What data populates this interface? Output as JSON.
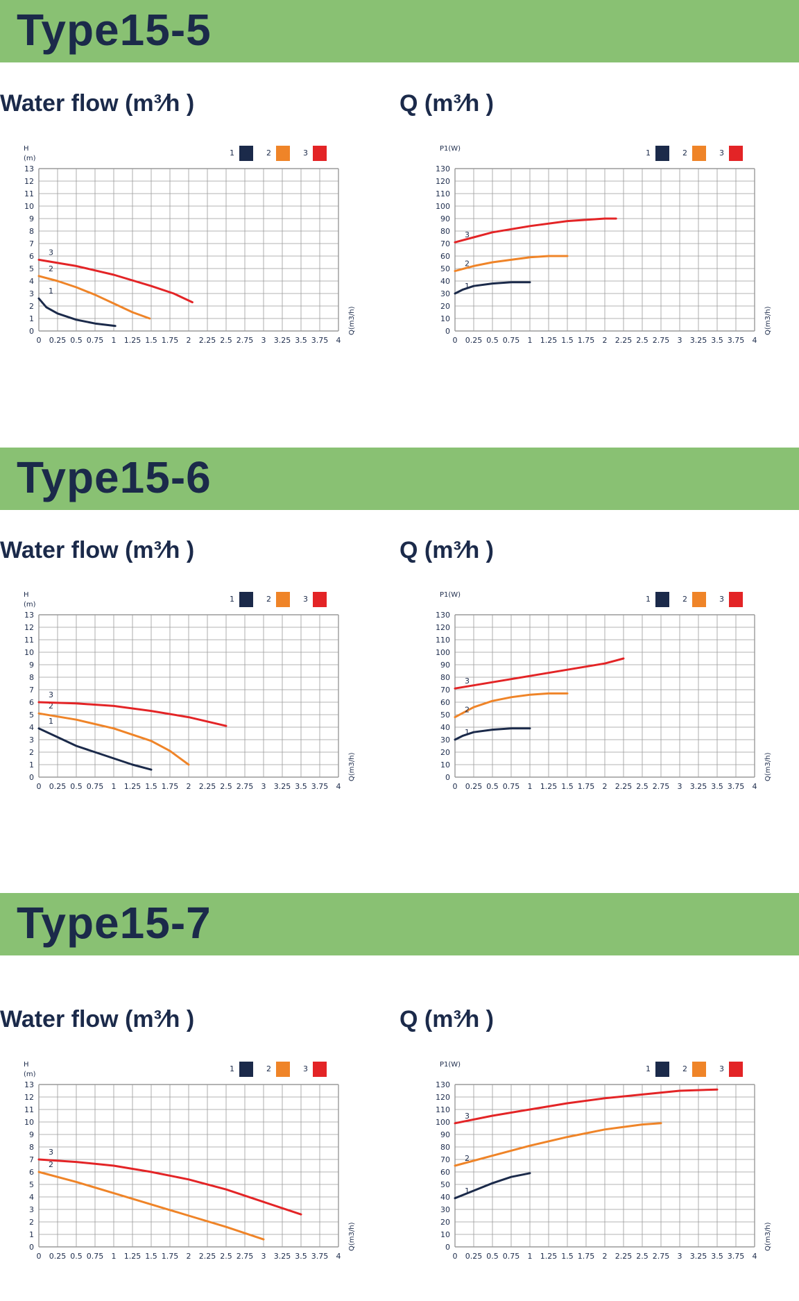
{
  "colors": {
    "banner": "#89c173",
    "series1": "#1b2a4a",
    "series2": "#ef8428",
    "series3": "#e32426",
    "grid": "#9a9a9a"
  },
  "sections": [
    {
      "title": "Type15-5",
      "left_label": "Water flow (m³⁄h )",
      "right_label": "Q (m³⁄h )"
    },
    {
      "title": "Type15-6",
      "left_label": "Water flow (m³⁄h )",
      "right_label": "Q (m³⁄h )"
    },
    {
      "title": "Type15-7",
      "left_label": "Water flow (m³⁄h )",
      "right_label": "Q (m³⁄h )"
    }
  ],
  "chart_data": [
    {
      "type": "line",
      "panel": "Type15-5 head",
      "ylabel_line1": "H",
      "ylabel_line2": "(m)",
      "xlabel": "Q(m3/h)",
      "xlim": [
        0,
        4
      ],
      "ylim": [
        0,
        13
      ],
      "ystep": 1,
      "xstep": 0.25,
      "grid": true,
      "legend_placement": "top-right",
      "x_ticks": [
        "0",
        "0.25",
        "0.5",
        "0.75",
        "1",
        "1.25",
        "1.5",
        "1.75",
        "2",
        "2.25",
        "2.5",
        "2.75",
        "3",
        "3.25",
        "3.5",
        "3.75",
        "4"
      ],
      "series": [
        {
          "name": "1",
          "points": [
            [
              0,
              2.6
            ],
            [
              0.1,
              1.9
            ],
            [
              0.25,
              1.4
            ],
            [
              0.5,
              0.9
            ],
            [
              0.75,
              0.6
            ],
            [
              1.02,
              0.4
            ]
          ]
        },
        {
          "name": "2",
          "points": [
            [
              0,
              4.4
            ],
            [
              0.25,
              4.0
            ],
            [
              0.5,
              3.5
            ],
            [
              0.75,
              2.9
            ],
            [
              1.0,
              2.2
            ],
            [
              1.25,
              1.5
            ],
            [
              1.48,
              1.0
            ]
          ]
        },
        {
          "name": "3",
          "points": [
            [
              0,
              5.7
            ],
            [
              0.5,
              5.2
            ],
            [
              1.0,
              4.5
            ],
            [
              1.5,
              3.6
            ],
            [
              1.8,
              3.0
            ],
            [
              2.05,
              2.3
            ]
          ]
        }
      ]
    },
    {
      "type": "line",
      "panel": "Type15-5 power",
      "ylabel_line1": "P1(W)",
      "ylabel_line2": "",
      "xlabel": "Q(m3/h)",
      "xlim": [
        0,
        4
      ],
      "ylim": [
        0,
        130
      ],
      "ystep": 10,
      "xstep": 0.25,
      "grid": true,
      "legend_placement": "top-right",
      "x_ticks": [
        "0",
        "0.25",
        "0.5",
        "0.75",
        "1",
        "1.25",
        "1.5",
        "1.75",
        "2",
        "2.25",
        "2.5",
        "2.75",
        "3",
        "3.25",
        "3.5",
        "3.75",
        "4"
      ],
      "series": [
        {
          "name": "1",
          "points": [
            [
              0,
              30
            ],
            [
              0.1,
              33
            ],
            [
              0.25,
              36
            ],
            [
              0.5,
              38
            ],
            [
              0.75,
              39
            ],
            [
              1.0,
              39
            ]
          ]
        },
        {
          "name": "2",
          "points": [
            [
              0,
              48
            ],
            [
              0.25,
              52
            ],
            [
              0.5,
              55
            ],
            [
              0.75,
              57
            ],
            [
              1.0,
              59
            ],
            [
              1.25,
              60
            ],
            [
              1.5,
              60
            ]
          ]
        },
        {
          "name": "3",
          "points": [
            [
              0,
              71
            ],
            [
              0.25,
              75
            ],
            [
              0.5,
              79
            ],
            [
              1.0,
              84
            ],
            [
              1.5,
              88
            ],
            [
              2.0,
              90
            ],
            [
              2.15,
              90
            ]
          ]
        }
      ]
    },
    {
      "type": "line",
      "panel": "Type15-6 head",
      "ylabel_line1": "H",
      "ylabel_line2": "(m)",
      "xlabel": "Q(m3/h)",
      "xlim": [
        0,
        4
      ],
      "ylim": [
        0,
        13
      ],
      "ystep": 1,
      "xstep": 0.25,
      "grid": true,
      "legend_placement": "top-right",
      "x_ticks": [
        "0",
        "0.25",
        "0.5",
        "0.75",
        "1",
        "1.25",
        "1.5",
        "1.75",
        "2",
        "2.25",
        "2.5",
        "2.75",
        "3",
        "3.25",
        "3.5",
        "3.75",
        "4"
      ],
      "series": [
        {
          "name": "1",
          "points": [
            [
              0,
              3.9
            ],
            [
              0.25,
              3.2
            ],
            [
              0.5,
              2.5
            ],
            [
              0.75,
              2.0
            ],
            [
              1.0,
              1.5
            ],
            [
              1.25,
              1.0
            ],
            [
              1.5,
              0.6
            ]
          ]
        },
        {
          "name": "2",
          "points": [
            [
              0,
              5.1
            ],
            [
              0.5,
              4.6
            ],
            [
              1.0,
              3.9
            ],
            [
              1.5,
              2.9
            ],
            [
              1.75,
              2.1
            ],
            [
              2.0,
              1.0
            ]
          ]
        },
        {
          "name": "3",
          "points": [
            [
              0,
              6.0
            ],
            [
              0.5,
              5.9
            ],
            [
              1.0,
              5.7
            ],
            [
              1.5,
              5.3
            ],
            [
              2.0,
              4.8
            ],
            [
              2.5,
              4.1
            ]
          ]
        }
      ]
    },
    {
      "type": "line",
      "panel": "Type15-6 power",
      "ylabel_line1": "P1(W)",
      "ylabel_line2": "",
      "xlabel": "Q(m3/h)",
      "xlim": [
        0,
        4
      ],
      "ylim": [
        0,
        130
      ],
      "ystep": 10,
      "xstep": 0.25,
      "grid": true,
      "legend_placement": "top-right",
      "x_ticks": [
        "0",
        "0.25",
        "0.5",
        "0.75",
        "1",
        "1.25",
        "1.5",
        "1.75",
        "2",
        "2.25",
        "2.5",
        "2.75",
        "3",
        "3.25",
        "3.5",
        "3.75",
        "4"
      ],
      "series": [
        {
          "name": "1",
          "points": [
            [
              0,
              30
            ],
            [
              0.1,
              33
            ],
            [
              0.25,
              36
            ],
            [
              0.5,
              38
            ],
            [
              0.75,
              39
            ],
            [
              1.0,
              39
            ]
          ]
        },
        {
          "name": "2",
          "points": [
            [
              0,
              48
            ],
            [
              0.25,
              56
            ],
            [
              0.5,
              61
            ],
            [
              0.75,
              64
            ],
            [
              1.0,
              66
            ],
            [
              1.25,
              67
            ],
            [
              1.5,
              67
            ]
          ]
        },
        {
          "name": "3",
          "points": [
            [
              0,
              71
            ],
            [
              0.5,
              76
            ],
            [
              1.0,
              81
            ],
            [
              1.5,
              86
            ],
            [
              2.0,
              91
            ],
            [
              2.25,
              95
            ]
          ]
        }
      ]
    },
    {
      "type": "line",
      "panel": "Type15-7 head",
      "ylabel_line1": "H",
      "ylabel_line2": "(m)",
      "xlabel": "Q(m3/h)",
      "xlim": [
        0,
        4
      ],
      "ylim": [
        0,
        13
      ],
      "ystep": 1,
      "xstep": 0.25,
      "grid": true,
      "legend_placement": "top-right",
      "x_ticks": [
        "0",
        "0.25",
        "0.5",
        "0.75",
        "1",
        "1.25",
        "1.5",
        "1.75",
        "2",
        "2.25",
        "2.5",
        "2.75",
        "3",
        "3.25",
        "3.5",
        "3.75",
        "4"
      ],
      "series": [
        {
          "name": "1",
          "points": []
        },
        {
          "name": "2",
          "points": [
            [
              0,
              6.0
            ],
            [
              0.5,
              5.2
            ],
            [
              1.0,
              4.3
            ],
            [
              1.5,
              3.4
            ],
            [
              2.0,
              2.5
            ],
            [
              2.5,
              1.6
            ],
            [
              3.0,
              0.6
            ]
          ]
        },
        {
          "name": "3",
          "points": [
            [
              0,
              7.0
            ],
            [
              0.5,
              6.8
            ],
            [
              1.0,
              6.5
            ],
            [
              1.5,
              6.0
            ],
            [
              2.0,
              5.4
            ],
            [
              2.5,
              4.6
            ],
            [
              3.0,
              3.6
            ],
            [
              3.5,
              2.6
            ]
          ]
        }
      ]
    },
    {
      "type": "line",
      "panel": "Type15-7 power",
      "ylabel_line1": "P1(W)",
      "ylabel_line2": "",
      "xlabel": "Q(m3/h)",
      "xlim": [
        0,
        4
      ],
      "ylim": [
        0,
        130
      ],
      "ystep": 10,
      "xstep": 0.25,
      "grid": true,
      "legend_placement": "top-right",
      "x_ticks": [
        "0",
        "0.25",
        "0.5",
        "0.75",
        "1",
        "1.25",
        "1.5",
        "1.75",
        "2",
        "2.25",
        "2.5",
        "2.75",
        "3",
        "3.25",
        "3.5",
        "3.75",
        "4"
      ],
      "series": [
        {
          "name": "1",
          "points": [
            [
              0,
              39
            ],
            [
              0.25,
              45
            ],
            [
              0.5,
              51
            ],
            [
              0.75,
              56
            ],
            [
              1.0,
              59
            ]
          ]
        },
        {
          "name": "2",
          "points": [
            [
              0,
              65
            ],
            [
              0.5,
              73
            ],
            [
              1.0,
              81
            ],
            [
              1.5,
              88
            ],
            [
              2.0,
              94
            ],
            [
              2.5,
              98
            ],
            [
              2.75,
              99
            ]
          ]
        },
        {
          "name": "3",
          "points": [
            [
              0,
              99
            ],
            [
              0.5,
              105
            ],
            [
              1.0,
              110
            ],
            [
              1.5,
              115
            ],
            [
              2.0,
              119
            ],
            [
              2.5,
              122
            ],
            [
              3.0,
              125
            ],
            [
              3.5,
              126
            ]
          ]
        }
      ]
    }
  ]
}
